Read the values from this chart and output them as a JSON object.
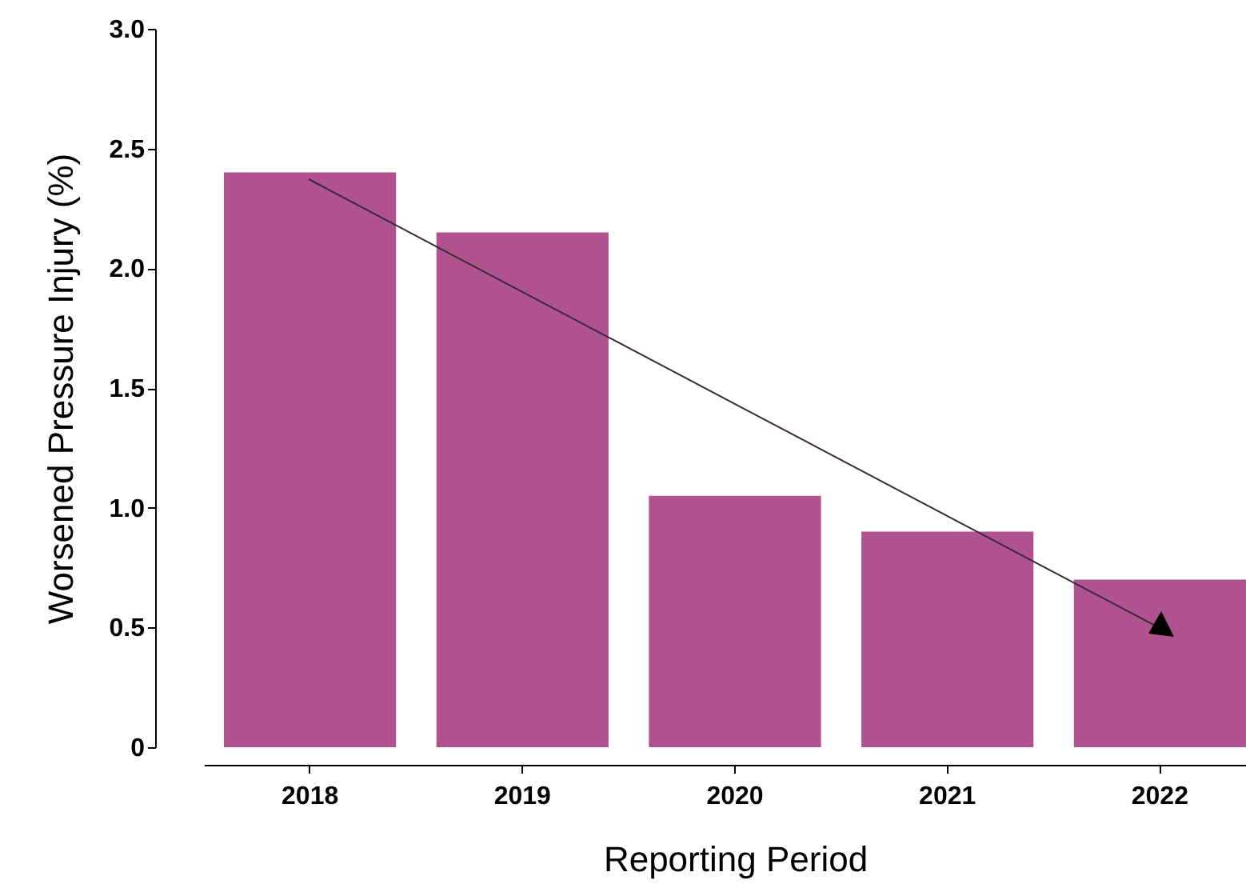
{
  "chart_data": {
    "type": "bar",
    "xlabel": "Reporting Period",
    "ylabel": "Worsened Pressure Injury (%)",
    "categories": [
      "2018",
      "2019",
      "2020",
      "2021",
      "2022"
    ],
    "values": [
      2.4,
      2.15,
      1.05,
      0.9,
      0.7
    ],
    "color": "#b05190",
    "ylim": [
      0,
      3.0
    ],
    "yticks": [
      {
        "value": 0,
        "label": "0"
      },
      {
        "value": 0.5,
        "label": "0.5"
      },
      {
        "value": 1,
        "label": "1.0"
      },
      {
        "value": 1.5,
        "label": "1.5"
      },
      {
        "value": 2,
        "label": "2.0"
      },
      {
        "value": 2.5,
        "label": "2.5"
      },
      {
        "value": 3,
        "label": "3.0"
      }
    ],
    "grid": false
  }
}
